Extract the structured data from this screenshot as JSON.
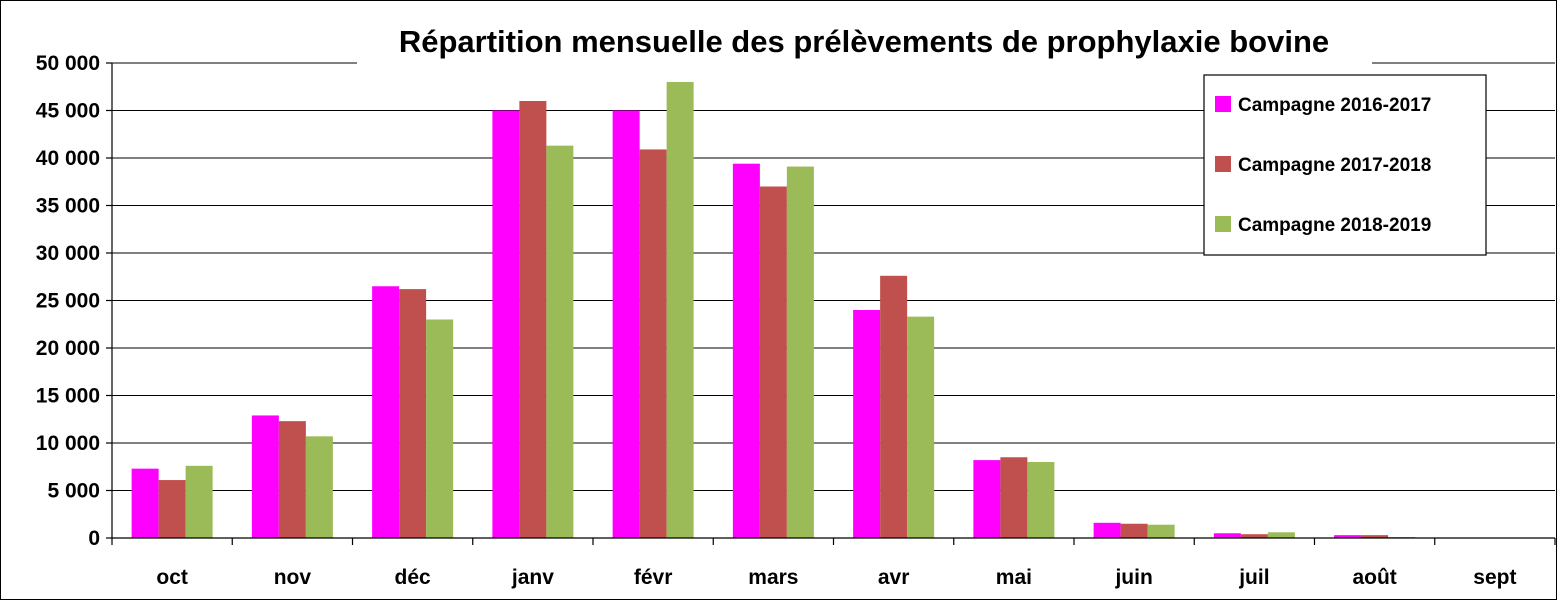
{
  "chart_data": {
    "type": "bar",
    "title": "Répartition mensuelle des prélèvements de prophylaxie bovine",
    "xlabel": "",
    "ylabel": "",
    "ylim": [
      0,
      50000
    ],
    "yticks": [
      0,
      5000,
      10000,
      15000,
      20000,
      25000,
      30000,
      35000,
      40000,
      45000,
      50000
    ],
    "ytick_labels": [
      "0",
      "5 000",
      "10 000",
      "15 000",
      "20 000",
      "25 000",
      "30 000",
      "35 000",
      "40 000",
      "45 000",
      "50 000"
    ],
    "categories": [
      "oct",
      "nov",
      "déc",
      "janv",
      "févr",
      "mars",
      "avr",
      "mai",
      "juin",
      "juil",
      "août",
      "sept"
    ],
    "series": [
      {
        "name": "Campagne 2016-2017",
        "color": "#FF00FF",
        "values": [
          7300,
          12900,
          26500,
          45000,
          45000,
          39400,
          24000,
          8200,
          1600,
          500,
          300,
          0
        ]
      },
      {
        "name": "Campagne 2017-2018",
        "color": "#C0504D",
        "values": [
          6100,
          12300,
          26200,
          46000,
          40900,
          37000,
          27600,
          8500,
          1500,
          400,
          300,
          0
        ]
      },
      {
        "name": "Campagne 2018-2019",
        "color": "#9BBB59",
        "values": [
          7600,
          10700,
          23000,
          41300,
          48000,
          39100,
          23300,
          8000,
          1400,
          600,
          100,
          0
        ]
      }
    ],
    "grid": true,
    "legend_position": "top-right"
  }
}
